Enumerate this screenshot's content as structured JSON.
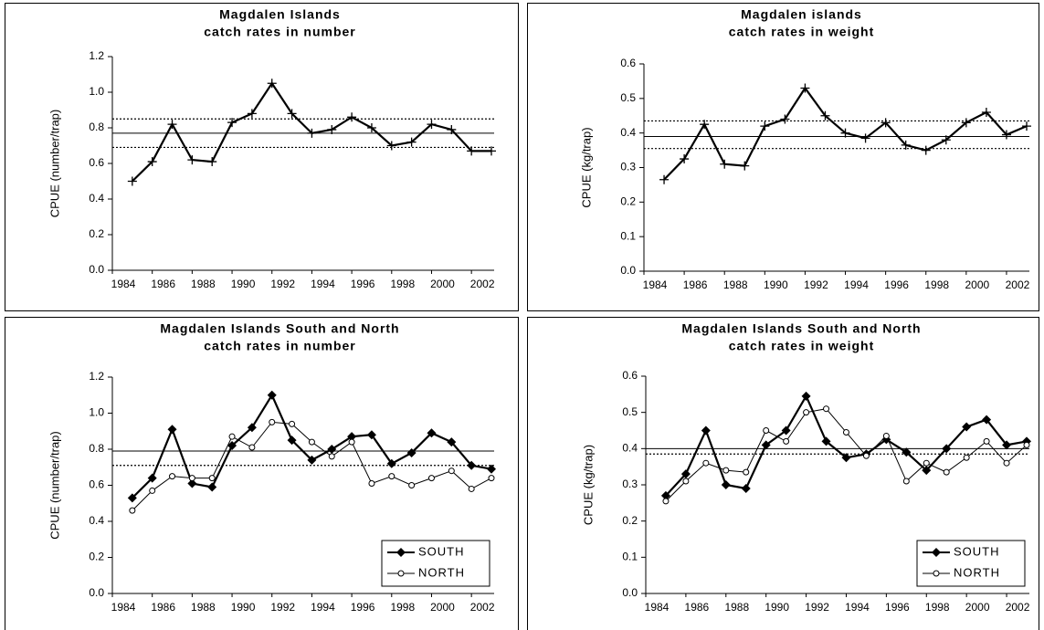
{
  "chart_data": [
    {
      "type": "line",
      "title": [
        "Magdalen Islands",
        "catch rates in number"
      ],
      "ylabel": "CPUE (number/trap)",
      "x": [
        1985,
        1986,
        1987,
        1988,
        1989,
        1990,
        1991,
        1992,
        1993,
        1994,
        1995,
        1996,
        1997,
        1998,
        1999,
        2000,
        2001,
        2002,
        2003
      ],
      "values": [
        0.5,
        0.61,
        0.82,
        0.62,
        0.61,
        0.83,
        0.88,
        1.05,
        0.88,
        0.77,
        0.79,
        0.86,
        0.8,
        0.7,
        0.72,
        0.82,
        0.79,
        0.67,
        0.67
      ],
      "color": "#000000",
      "marker": "plus",
      "reference_lines": [
        {
          "value": 0.77,
          "style": "solid"
        },
        {
          "value": 0.85,
          "style": "dotted"
        },
        {
          "value": 0.69,
          "style": "dotted"
        }
      ],
      "xlim": [
        1984,
        2003
      ],
      "xticks": [
        1984,
        1986,
        1988,
        1990,
        1992,
        1994,
        1996,
        1998,
        2000,
        2002
      ],
      "ylim": [
        0,
        1.2
      ],
      "yticks": [
        {
          "value": 0,
          "label": "0.0"
        },
        0.2,
        0.4,
        0.6,
        0.8,
        {
          "value": 1,
          "label": "1.0"
        },
        1.2
      ]
    },
    {
      "type": "line",
      "title": [
        "Magdalen islands",
        "catch rates in weight"
      ],
      "ylabel": "CPUE (kg/trap)",
      "x": [
        1985,
        1986,
        1987,
        1988,
        1989,
        1990,
        1991,
        1992,
        1993,
        1994,
        1995,
        1996,
        1997,
        1998,
        1999,
        2000,
        2001,
        2002,
        2003
      ],
      "values": [
        0.265,
        0.325,
        0.425,
        0.31,
        0.305,
        0.42,
        0.44,
        0.53,
        0.45,
        0.4,
        0.385,
        0.43,
        0.365,
        0.35,
        0.38,
        0.43,
        0.46,
        0.395,
        0.42
      ],
      "color": "#000000",
      "marker": "plus",
      "reference_lines": [
        {
          "value": 0.39,
          "style": "solid"
        },
        {
          "value": 0.435,
          "style": "dotted"
        },
        {
          "value": 0.355,
          "style": "dotted"
        }
      ],
      "xlim": [
        1984,
        2003
      ],
      "xticks": [
        1984,
        1986,
        1988,
        1990,
        1992,
        1994,
        1996,
        1998,
        2000,
        2002
      ],
      "ylim": [
        0,
        0.6
      ],
      "yticks": [
        {
          "value": 0,
          "label": "0.0"
        },
        0.1,
        0.2,
        0.3,
        0.4,
        0.5,
        0.6
      ]
    },
    {
      "type": "line",
      "title": [
        "Magdalen Islands South and North",
        "catch rates in number"
      ],
      "ylabel": "CPUE (number/trap)",
      "x": [
        1985,
        1986,
        1987,
        1988,
        1989,
        1990,
        1991,
        1992,
        1993,
        1994,
        1995,
        1996,
        1997,
        1998,
        1999,
        2000,
        2001,
        2002,
        2003
      ],
      "series": [
        {
          "name": "SOUTH",
          "color": "#000000",
          "marker": "diamond",
          "values": [
            0.53,
            0.64,
            0.91,
            0.61,
            0.59,
            0.82,
            0.92,
            1.1,
            0.85,
            0.74,
            0.8,
            0.87,
            0.88,
            0.72,
            0.78,
            0.89,
            0.84,
            0.71,
            0.69
          ]
        },
        {
          "name": "NORTH",
          "color": "#000000",
          "marker": "circle",
          "values": [
            0.46,
            0.57,
            0.65,
            0.64,
            0.64,
            0.87,
            0.81,
            0.95,
            0.94,
            0.84,
            0.76,
            0.84,
            0.61,
            0.65,
            0.6,
            0.64,
            0.68,
            0.58,
            0.64
          ]
        }
      ],
      "reference_lines": [
        {
          "value": 0.79,
          "style": "solid"
        },
        {
          "value": 0.71,
          "style": "dotted"
        }
      ],
      "legend": "lower right",
      "xlim": [
        1984,
        2003
      ],
      "xticks": [
        1984,
        1986,
        1988,
        1990,
        1992,
        1994,
        1996,
        1998,
        2000,
        2002
      ],
      "ylim": [
        0,
        1.2
      ],
      "yticks": [
        {
          "value": 0,
          "label": "0.0"
        },
        0.2,
        0.4,
        0.6,
        0.8,
        {
          "value": 1,
          "label": "1.0"
        },
        1.2
      ]
    },
    {
      "type": "line",
      "title": [
        "Magdalen Islands South and North",
        "catch rates in weight"
      ],
      "ylabel": "CPUE (kg/trap)",
      "x": [
        1985,
        1986,
        1987,
        1988,
        1989,
        1990,
        1991,
        1992,
        1993,
        1994,
        1995,
        1996,
        1997,
        1998,
        1999,
        2000,
        2001,
        2002,
        2003
      ],
      "series": [
        {
          "name": "SOUTH",
          "color": "#000000",
          "marker": "diamond",
          "values": [
            0.27,
            0.33,
            0.45,
            0.3,
            0.29,
            0.41,
            0.45,
            0.545,
            0.42,
            0.375,
            0.385,
            0.425,
            0.39,
            0.34,
            0.4,
            0.46,
            0.48,
            0.41,
            0.42
          ]
        },
        {
          "name": "NORTH",
          "color": "#000000",
          "marker": "circle",
          "values": [
            0.255,
            0.31,
            0.36,
            0.34,
            0.335,
            0.45,
            0.42,
            0.5,
            0.51,
            0.445,
            0.38,
            0.435,
            0.31,
            0.36,
            0.335,
            0.375,
            0.42,
            0.36,
            0.41
          ]
        }
      ],
      "reference_lines": [
        {
          "value": 0.4,
          "style": "solid"
        },
        {
          "value": 0.385,
          "style": "dotted"
        }
      ],
      "legend": "lower right",
      "xlim": [
        1984,
        2003
      ],
      "xticks": [
        1984,
        1986,
        1988,
        1990,
        1992,
        1994,
        1996,
        1998,
        2000,
        2002
      ],
      "ylim": [
        0,
        0.6
      ],
      "yticks": [
        {
          "value": 0,
          "label": "0.0"
        },
        0.1,
        0.2,
        0.3,
        0.4,
        0.5,
        0.6
      ]
    }
  ]
}
